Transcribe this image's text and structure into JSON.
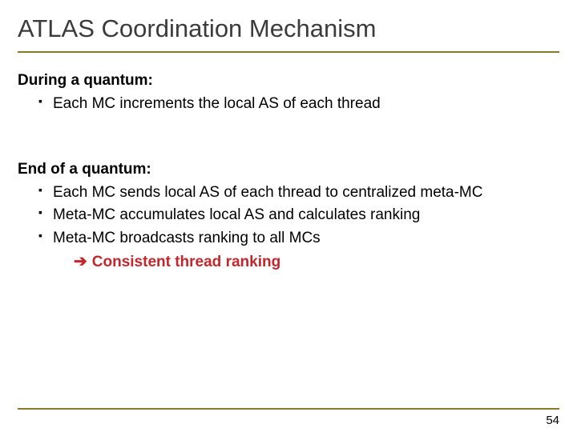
{
  "title": "ATLAS Coordination Mechanism",
  "section1": {
    "heading": "During a quantum:",
    "bullets": [
      "Each MC increments the local AS of each thread"
    ]
  },
  "section2": {
    "heading": "End of a quantum:",
    "bullets": [
      "Each MC sends local AS of each thread to centralized meta-MC",
      "Meta-MC accumulates local AS and calculates ranking",
      "Meta-MC broadcasts ranking to all MCs"
    ],
    "result_arrow": "➔",
    "result_text": "Consistent thread ranking"
  },
  "page_number": "54",
  "colors": {
    "rule": "#8a7a28",
    "accent": "#c1272d",
    "text": "#000000",
    "title": "#3b3b3b",
    "background": "#ffffff"
  }
}
